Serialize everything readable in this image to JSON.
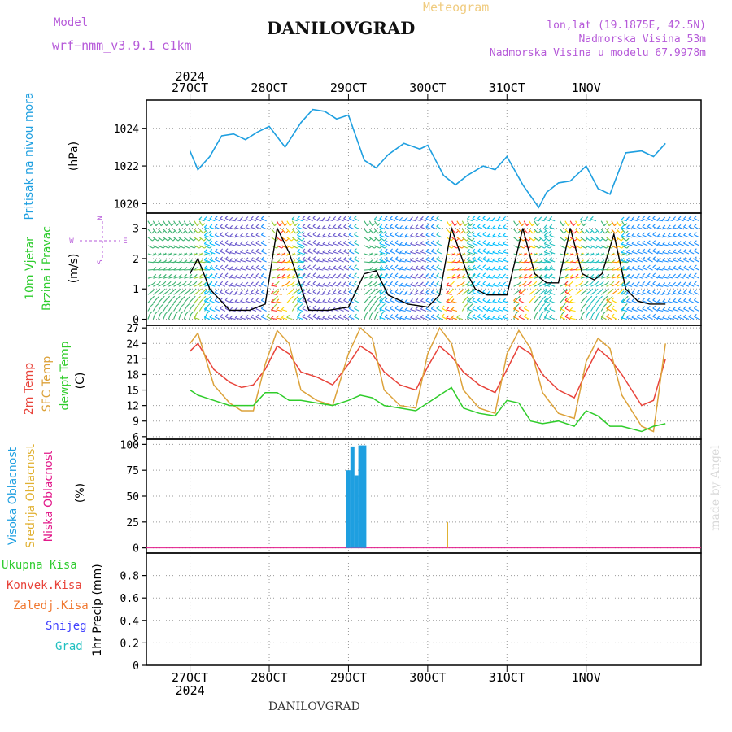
{
  "header": {
    "model_label": "Model",
    "model_name": "wrf−nmm_v3.9.1 e1km",
    "title": "DANILOVGRAD",
    "subtitle": "Meteogram",
    "coords": "lon,lat (19.1875E, 42.5N)",
    "elevation": "Nadmorska Visina 53m",
    "model_elevation": "Nadmorska Visina u modelu 67.9978m",
    "footer": "DANILOVGRAD",
    "watermark": "made by Angel"
  },
  "colors": {
    "pressure": "#1e9fe0",
    "wind_label": "#2ecc2e",
    "temp2m": "#e8433a",
    "sfc_temp": "#dca23a",
    "dewpt": "#2fcc2a",
    "visoka": "#1e9fe0",
    "srednja": "#e0b030",
    "niska": "#e21a8a",
    "ukupna": "#2ecc2e",
    "konvek": "#e8433a",
    "zaledj": "#f07830",
    "snijeg": "#4040ff",
    "grad": "#20c0c0",
    "purple": "#b65ad9"
  },
  "axis": {
    "year": "2024",
    "day_labels": [
      "27OCT",
      "28OCT",
      "29OCT",
      "30OCT",
      "31OCT",
      "1NOV"
    ]
  },
  "labels": {
    "pressure": "Pritisak na nivou mora",
    "pressure_unit": "(hPa)",
    "wind1": "10m Vjetar",
    "wind2": "Brzina i Pravac",
    "wind_unit": "(m/s)",
    "compass_n": "N",
    "compass_w": "W",
    "compass_e": "E",
    "compass_s": "S",
    "temp1": "2m Temp",
    "temp2": "SFC Temp",
    "temp3": "dewpt Temp",
    "temp_unit": "(C)",
    "cloud1": "Visoka Oblacnost",
    "cloud2": "Srednja Oblacnost",
    "cloud3": "Niska Oblacnost",
    "cloud_unit": "(%)",
    "precip": [
      "Ukupna Kisa",
      "Konvek.Kisa",
      "Zaledj.Kisa",
      "Snijeg",
      "Grad"
    ],
    "precip_unit": "1hr Precip (mm)"
  },
  "chart_data": [
    {
      "type": "line",
      "panel": "pressure",
      "ylabel": "(hPa)",
      "ylim": [
        1019.5,
        1025.5
      ],
      "yticks": [
        1020,
        1022,
        1024
      ],
      "grid": true,
      "x_days": [
        0,
        0.1,
        0.25,
        0.4,
        0.55,
        0.7,
        0.85,
        1,
        1.2,
        1.4,
        1.55,
        1.7,
        1.85,
        2,
        2.2,
        2.35,
        2.5,
        2.7,
        2.9,
        3.0,
        3.2,
        3.35,
        3.5,
        3.7,
        3.85,
        4.0,
        4.2,
        4.4,
        4.5,
        4.65,
        4.8,
        5.0,
        5.15,
        5.3,
        5.5,
        5.7,
        5.85,
        6.0
      ],
      "series": [
        {
          "values": [
            1022.8,
            1021.8,
            1022.5,
            1023.6,
            1023.7,
            1023.4,
            1023.8,
            1024.1,
            1023.0,
            1024.3,
            1025.0,
            1024.9,
            1024.5,
            1024.7,
            1022.3,
            1021.9,
            1022.6,
            1023.2,
            1022.9,
            1023.1,
            1021.5,
            1021.0,
            1021.5,
            1022.0,
            1021.8,
            1022.5,
            1021.0,
            1019.8,
            1020.6,
            1021.1,
            1021.2,
            1022.0,
            1020.8,
            1020.5,
            1022.7,
            1022.8,
            1022.5,
            1023.2
          ]
        }
      ]
    },
    {
      "type": "line",
      "panel": "wind",
      "ylabel": "(m/s)",
      "ylim": [
        -0.2,
        3.5
      ],
      "yticks": [
        0,
        1,
        2,
        3
      ],
      "grid": true,
      "x_days": [
        0,
        0.1,
        0.25,
        0.5,
        0.75,
        0.95,
        1.1,
        1.25,
        1.5,
        1.75,
        2.0,
        2.2,
        2.35,
        2.5,
        2.75,
        3.0,
        3.15,
        3.3,
        3.5,
        3.6,
        3.75,
        4.0,
        4.2,
        4.35,
        4.5,
        4.65,
        4.8,
        4.95,
        5.1,
        5.2,
        5.35,
        5.5,
        5.65,
        5.8,
        6.0
      ],
      "series": [
        {
          "name": "speed",
          "values": [
            1.5,
            2.0,
            1.0,
            0.3,
            0.3,
            0.5,
            3.0,
            2.2,
            0.3,
            0.3,
            0.4,
            1.5,
            1.6,
            0.8,
            0.5,
            0.4,
            0.8,
            3.0,
            1.5,
            1.0,
            0.8,
            0.8,
            3.0,
            1.5,
            1.2,
            1.2,
            3.0,
            1.5,
            1.3,
            1.5,
            2.8,
            1.0,
            0.6,
            0.5,
            0.5
          ]
        }
      ]
    },
    {
      "type": "line",
      "panel": "temperature",
      "ylabel": "(C)",
      "ylim": [
        5.5,
        27.5
      ],
      "yticks": [
        6,
        9,
        12,
        15,
        18,
        21,
        24,
        27
      ],
      "grid": true,
      "x_days": [
        0,
        0.1,
        0.3,
        0.5,
        0.65,
        0.8,
        0.95,
        1.1,
        1.25,
        1.4,
        1.6,
        1.8,
        2.0,
        2.15,
        2.3,
        2.45,
        2.65,
        2.85,
        3.0,
        3.15,
        3.3,
        3.45,
        3.65,
        3.85,
        4.0,
        4.15,
        4.3,
        4.45,
        4.65,
        4.85,
        5.0,
        5.15,
        5.3,
        5.45,
        5.7,
        5.85,
        6.0
      ],
      "series": [
        {
          "name": "2m Temp",
          "values": [
            22.5,
            24.0,
            19.0,
            16.5,
            15.5,
            16.0,
            19.0,
            23.5,
            22.0,
            18.5,
            17.5,
            16.0,
            20.0,
            23.5,
            22.0,
            18.5,
            16.0,
            15.0,
            19.5,
            23.5,
            21.5,
            18.5,
            16.0,
            14.5,
            19.0,
            23.5,
            22.0,
            18.0,
            15.0,
            13.5,
            18.5,
            23.0,
            21.0,
            18.0,
            12.0,
            13.0,
            21.0
          ]
        },
        {
          "name": "SFC Temp",
          "values": [
            24.0,
            26.0,
            16.0,
            12.5,
            11.0,
            11.0,
            20.0,
            26.5,
            24.0,
            15.0,
            13.0,
            12.0,
            22.0,
            27.0,
            25.0,
            15.0,
            12.0,
            11.5,
            22.0,
            27.0,
            24.0,
            15.0,
            11.5,
            10.5,
            22.0,
            26.5,
            23.0,
            14.5,
            10.5,
            9.5,
            20.5,
            25.0,
            23.0,
            14.0,
            8.0,
            7.0,
            24.0
          ]
        },
        {
          "name": "dewpt Temp",
          "values": [
            15.0,
            14.0,
            13.0,
            12.0,
            12.0,
            12.0,
            14.5,
            14.5,
            13.0,
            13.0,
            12.5,
            12.0,
            13.0,
            14.0,
            13.5,
            12.0,
            11.5,
            11.0,
            12.5,
            14.0,
            15.5,
            11.5,
            10.5,
            10.0,
            13.0,
            12.5,
            9.0,
            8.5,
            9.0,
            8.0,
            11.0,
            10.0,
            8.0,
            8.0,
            7.0,
            8.0,
            8.5
          ]
        }
      ]
    },
    {
      "type": "bar",
      "panel": "clouds",
      "ylabel": "(%)",
      "ylim": [
        -5,
        105
      ],
      "yticks": [
        0,
        25,
        50,
        75,
        100
      ],
      "grid": true,
      "series": [
        {
          "name": "Visoka Oblacnost",
          "x_days": [
            2.0,
            2.05,
            2.1,
            2.15,
            2.2
          ],
          "values": [
            75,
            98,
            70,
            99,
            99
          ]
        },
        {
          "name": "Srednja Oblacnost",
          "x_days": [
            3.25
          ],
          "values": [
            25
          ]
        }
      ]
    },
    {
      "type": "bar",
      "panel": "precipitation",
      "ylabel": "1hr Precip (mm)",
      "ylim": [
        0,
        1.0
      ],
      "yticks": [
        0,
        0.2,
        0.4,
        0.6,
        0.8
      ],
      "grid": true,
      "series": []
    }
  ]
}
